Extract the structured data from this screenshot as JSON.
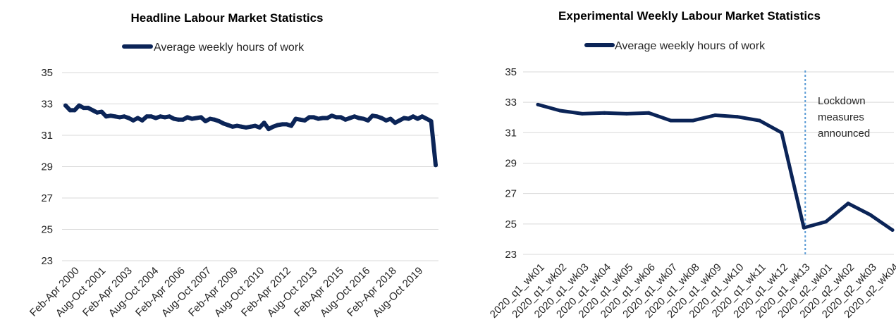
{
  "chart_data": [
    {
      "type": "line",
      "title": "Headline Labour Market Statistics",
      "xlabel": "",
      "ylabel": "",
      "ylim": [
        23,
        35
      ],
      "yticks": [
        23,
        25,
        27,
        29,
        31,
        33,
        35
      ],
      "grid": true,
      "legend_placement": "top-center",
      "series_color": "#0b2457",
      "x_tick_labels": [
        "Feb-Apr 2000",
        "Aug-Oct 2001",
        "Feb-Apr 2003",
        "Aug-Oct 2004",
        "Feb-Apr 2006",
        "Aug-Oct 2007",
        "Feb-Apr 2009",
        "Aug-Oct 2010",
        "Feb-Apr 2012",
        "Aug-Oct 2013",
        "Feb-Apr 2015",
        "Aug-Oct 2016",
        "Feb-Apr 2018",
        "Aug-Oct 2019"
      ],
      "series": [
        {
          "name": "Average weekly hours of work",
          "values": [
            32.9,
            32.6,
            32.6,
            32.9,
            32.75,
            32.75,
            32.6,
            32.45,
            32.5,
            32.2,
            32.25,
            32.2,
            32.15,
            32.2,
            32.1,
            31.95,
            32.1,
            31.95,
            32.2,
            32.2,
            32.1,
            32.2,
            32.15,
            32.2,
            32.05,
            32.0,
            32.0,
            32.15,
            32.05,
            32.1,
            32.15,
            31.9,
            32.05,
            32.0,
            31.9,
            31.75,
            31.65,
            31.55,
            31.6,
            31.55,
            31.5,
            31.55,
            31.6,
            31.5,
            31.8,
            31.4,
            31.55,
            31.65,
            31.7,
            31.7,
            31.6,
            32.05,
            32.0,
            31.95,
            32.15,
            32.15,
            32.05,
            32.1,
            32.1,
            32.25,
            32.15,
            32.15,
            32.0,
            32.1,
            32.2,
            32.1,
            32.05,
            31.95,
            32.25,
            32.2,
            32.1,
            31.95,
            32.05,
            31.8,
            31.95,
            32.1,
            32.05,
            32.2,
            32.05,
            32.2,
            32.05,
            31.9,
            29.1
          ]
        }
      ]
    },
    {
      "type": "line",
      "title": "Experimental Weekly Labour Market Statistics",
      "xlabel": "",
      "ylabel": "",
      "ylim": [
        23,
        35
      ],
      "yticks": [
        23,
        25,
        27,
        29,
        31,
        33,
        35
      ],
      "grid": true,
      "legend_placement": "top-center",
      "series_color": "#0b2457",
      "categories": [
        "2020_q1_wk01",
        "2020_q1_wk02",
        "2020_q1_wk03",
        "2020_q1_wk04",
        "2020_q1_wk05",
        "2020_q1_wk06",
        "2020_q1_wk07",
        "2020_q1_wk08",
        "2020_q1_wk09",
        "2020_q1_wk10",
        "2020_q1_wk11",
        "2020_q1_wk12",
        "2020_q1_wk13",
        "2020_q2_wk01",
        "2020_q2_wk02",
        "2020_q2_wk03",
        "2020_q2_wk04"
      ],
      "series": [
        {
          "name": "Average weekly hours of work",
          "values": [
            32.85,
            32.45,
            32.25,
            32.3,
            32.25,
            32.3,
            31.8,
            31.8,
            32.15,
            32.05,
            31.8,
            31.0,
            24.75,
            25.15,
            26.35,
            25.6,
            24.6
          ]
        }
      ],
      "annotation": {
        "text_lines": [
          "Lockdown",
          "measures",
          "announced"
        ],
        "marker_after_category": "2020_q1_wk13",
        "line_color": "#5b9bd5"
      }
    }
  ]
}
